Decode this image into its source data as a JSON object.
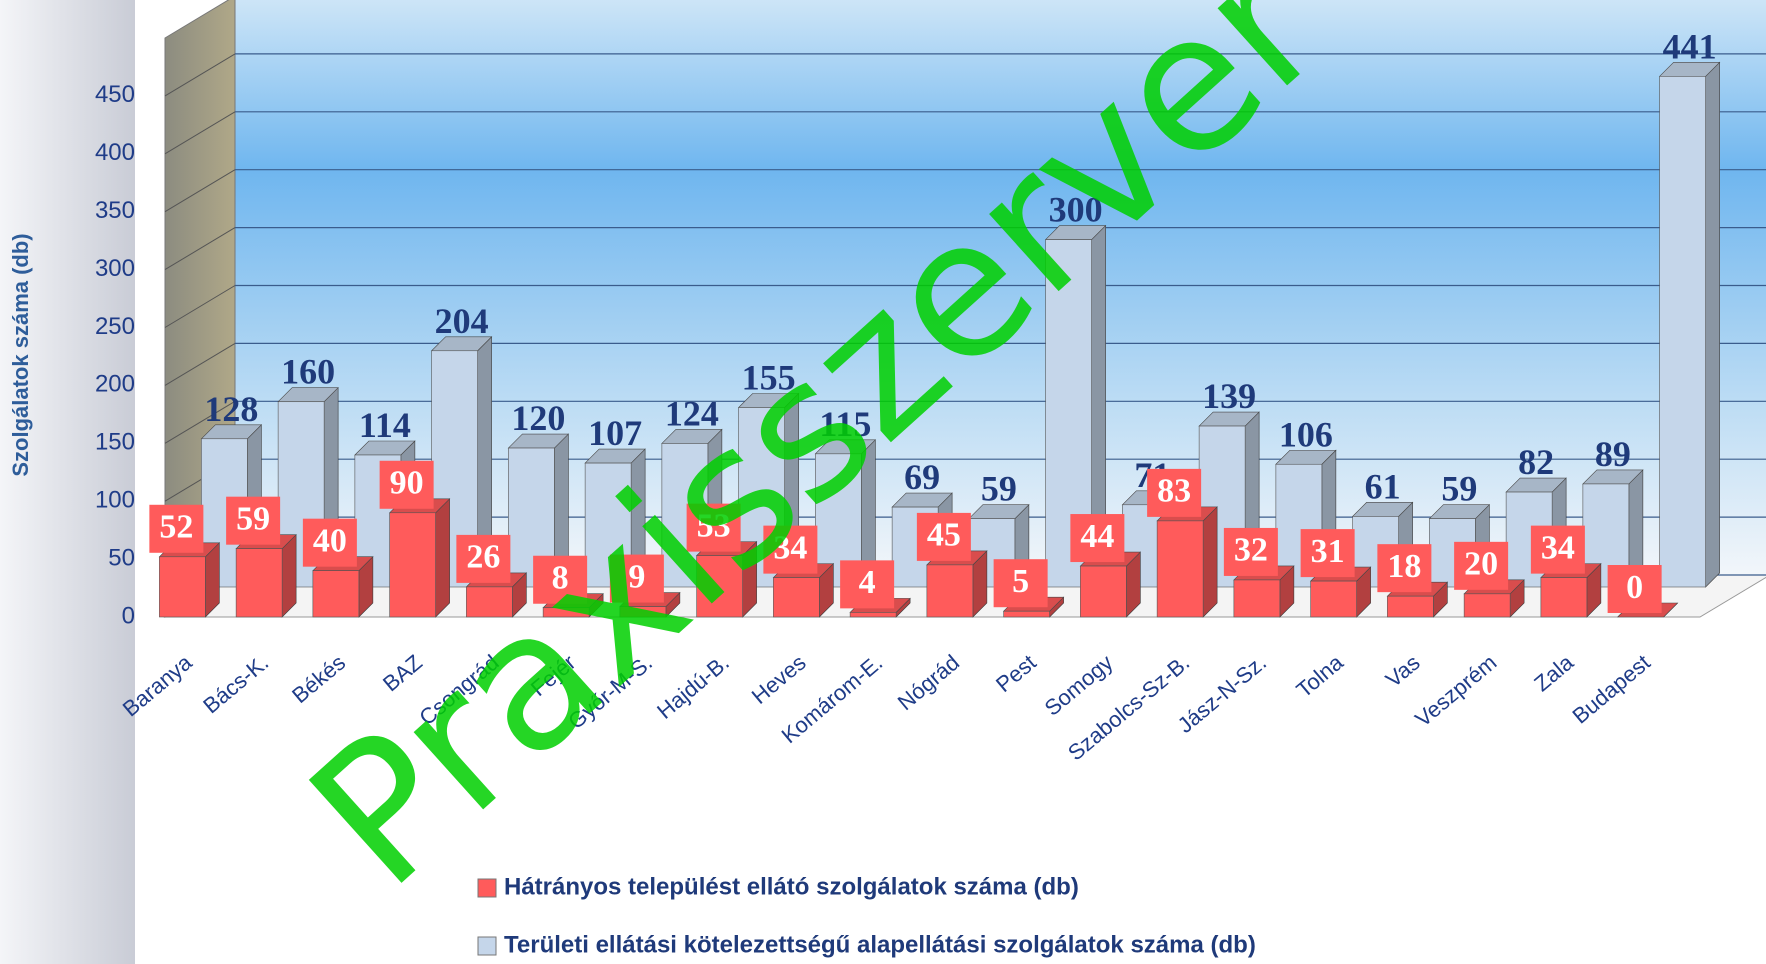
{
  "chart_data": {
    "type": "bar3d",
    "y_label": "Szolgálatok száma (db)",
    "categories": [
      "Baranya",
      "Bács-K.",
      "Békés",
      "BAZ",
      "Csongrád",
      "Fejér",
      "Győr-M-S.",
      "Hajdú-B.",
      "Heves",
      "Komárom-E.",
      "Nógrád",
      "Pest",
      "Somogy",
      "Szabolcs-Sz-B.",
      "Jász-N-Sz.",
      "Tolna",
      "Vas",
      "Veszprém",
      "Zala",
      "Budapest"
    ],
    "series": [
      {
        "name": "Hátrányos települést ellátó szolgálatok száma (db)",
        "color": "#ff5b5b",
        "values": [
          52,
          59,
          40,
          90,
          26,
          8,
          9,
          53,
          34,
          4,
          45,
          5,
          44,
          83,
          32,
          31,
          18,
          20,
          34,
          0
        ]
      },
      {
        "name": "Területi ellátási kötelezettségű alapellátási szolgálatok száma (db)",
        "color": "#c5d6ea",
        "values": [
          128,
          160,
          114,
          204,
          120,
          107,
          124,
          155,
          115,
          69,
          59,
          300,
          71,
          139,
          106,
          61,
          59,
          82,
          89,
          441
        ]
      }
    ],
    "ylim": [
      0,
      500
    ],
    "yticks": [
      0,
      50,
      100,
      150,
      200,
      250,
      300,
      350,
      400,
      450
    ],
    "grid": true,
    "watermark": "Praxisszerver"
  }
}
